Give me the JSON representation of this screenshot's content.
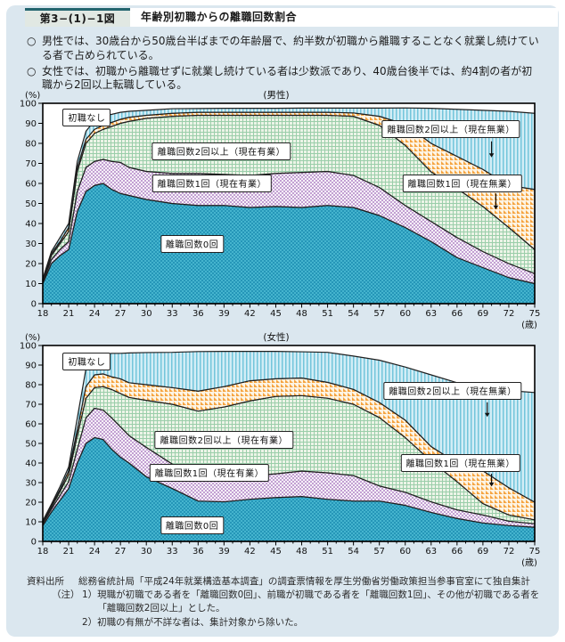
{
  "header": {
    "figure_no": "第3−(1)−1図",
    "title": "年齢別初職からの離職回数割合"
  },
  "bullets": [
    {
      "marker": "○",
      "text": "男性では、30歳台から50歳台半ばまでの年齢層で、約半数が初職から離職することなく就業し続けている者で占められている。"
    },
    {
      "marker": "○",
      "text": "女性では、初職から離職せずに就業し続けている者は少数派であり、40歳台後半では、約4割の者が初職から2回以上転職している。"
    }
  ],
  "colors": {
    "panel_bg": "#dbe7ef",
    "plot_bg": "#ffffff",
    "boundary_line": "#1f1f1f",
    "series": [
      {
        "name": "離職回数0回",
        "pattern": "checker",
        "base": "#45b4ce",
        "accent": "#2596b8"
      },
      {
        "name": "離職回数1回（現在有業）",
        "pattern": "checker",
        "base": "#f6f0f8",
        "accent": "#c2a0d2"
      },
      {
        "name": "離職回数2回以上（現在有業）",
        "pattern": "grid",
        "base": "#ecf4e7",
        "accent": "#9bceaa"
      },
      {
        "name": "離職回数1回（現在無業）",
        "pattern": "triangle",
        "base": "#fdf4e4",
        "accent": "#f5a440"
      },
      {
        "name": "離職回数2回以上（現在無業）",
        "pattern": "vstripe",
        "base": "#d2edf6",
        "accent": "#73c5db"
      }
    ]
  },
  "chart_data": [
    {
      "type": "area",
      "stacked": true,
      "title": "(男性)",
      "y_unit": "(%)",
      "x_unit": "(歳)",
      "xlim": [
        18,
        75
      ],
      "ylim": [
        0,
        100
      ],
      "xticks": [
        18,
        21,
        24,
        27,
        30,
        33,
        36,
        39,
        42,
        45,
        48,
        51,
        54,
        57,
        60,
        63,
        66,
        69,
        72,
        75
      ],
      "yticks": [
        0,
        10,
        20,
        30,
        40,
        50,
        60,
        70,
        80,
        90,
        100
      ],
      "x": [
        18,
        19,
        20,
        21,
        22,
        23,
        24,
        25,
        26,
        27,
        28,
        30,
        33,
        36,
        39,
        42,
        45,
        48,
        51,
        54,
        57,
        60,
        63,
        66,
        69,
        72,
        75
      ],
      "series": [
        {
          "name": "離職回数0回",
          "values": [
            10,
            20,
            24,
            27,
            46,
            56,
            59,
            60,
            57,
            55,
            54,
            52,
            50,
            49,
            49,
            48,
            48.5,
            48,
            49,
            48,
            44,
            38,
            31,
            23,
            18,
            13,
            10
          ]
        },
        {
          "name": "離職回数1回（現在有業）",
          "values": [
            1,
            2,
            3,
            4,
            10,
            12,
            12,
            12,
            14,
            15.5,
            14,
            14,
            15,
            16,
            15.5,
            16,
            16.5,
            17.5,
            17,
            16,
            14,
            11,
            10,
            10,
            8,
            7,
            5
          ]
        },
        {
          "name": "離職回数2回以上（現在有業）",
          "values": [
            0.5,
            2,
            3,
            5,
            10,
            12,
            14,
            15,
            17.5,
            19.5,
            23,
            26.5,
            28.5,
            29,
            29.5,
            30,
            29,
            28.5,
            28,
            29.5,
            31,
            30,
            24.8,
            24.5,
            22.5,
            18,
            12
          ]
        },
        {
          "name": "離職回数1回（現在無業）",
          "values": [
            0.5,
            1,
            1,
            2,
            2,
            2,
            2,
            2,
            2,
            2,
            2,
            1.5,
            1.5,
            1.5,
            1.5,
            1.5,
            1.5,
            1.5,
            1.5,
            1.7,
            4.5,
            10.5,
            14.2,
            16,
            18.5,
            21,
            30
          ]
        },
        {
          "name": "離職回数2回以上（現在無業）",
          "values": [
            0.5,
            1,
            2,
            2,
            3,
            4,
            4.5,
            5,
            4,
            3.5,
            3,
            2.5,
            2.3,
            1.9,
            2,
            2,
            2,
            2.1,
            2.1,
            2.4,
            4.1,
            8.2,
            17.5,
            23.5,
            29.5,
            37,
            38
          ]
        }
      ],
      "labels": [
        {
          "text": "初職なし"
        },
        {
          "text": "離職回数2回以上（現在有業）"
        },
        {
          "text": "離職回数1回（現在有業）"
        },
        {
          "text": "離職回数0回"
        },
        {
          "text": "離職回数2回以上（現在無業）"
        },
        {
          "text": "離職回数1回（現在無業）"
        }
      ]
    },
    {
      "type": "area",
      "stacked": true,
      "title": "(女性)",
      "y_unit": "(%)",
      "x_unit": "(歳)",
      "xlim": [
        18,
        75
      ],
      "ylim": [
        0,
        100
      ],
      "xticks": [
        18,
        21,
        24,
        27,
        30,
        33,
        36,
        39,
        42,
        45,
        48,
        51,
        54,
        57,
        60,
        63,
        66,
        69,
        72,
        75
      ],
      "yticks": [
        0,
        10,
        20,
        30,
        40,
        50,
        60,
        70,
        80,
        90,
        100
      ],
      "x": [
        18,
        19,
        20,
        21,
        22,
        23,
        24,
        25,
        26,
        27,
        28,
        30,
        33,
        36,
        39,
        42,
        45,
        48,
        51,
        54,
        57,
        60,
        63,
        66,
        69,
        72,
        75
      ],
      "series": [
        {
          "name": "離職回数0回",
          "values": [
            8,
            15,
            21,
            27,
            40,
            50,
            53,
            52,
            47,
            43,
            40,
            33,
            27,
            20.6,
            20.2,
            21.5,
            22.4,
            22.9,
            21.5,
            20.6,
            20.6,
            18.4,
            14.8,
            11.7,
            9.4,
            8.1,
            7.2
          ]
        },
        {
          "name": "離職回数1回（現在有業）",
          "values": [
            1,
            1.5,
            2.5,
            3.5,
            7,
            13,
            15,
            15,
            16,
            15.5,
            14,
            15,
            12.5,
            11.4,
            12.3,
            12,
            12.1,
            13,
            13.5,
            13,
            7.7,
            6.7,
            5.4,
            4.4,
            4.1,
            2.2,
            1.8
          ]
        },
        {
          "name": "離職回数2回以上（現在有業）",
          "values": [
            0.5,
            1,
            2,
            3.5,
            7,
            10,
            10.5,
            12,
            14.5,
            17,
            19.5,
            24,
            30.5,
            34.5,
            36.1,
            38.2,
            39.5,
            38.5,
            38.1,
            36.4,
            34.9,
            27.9,
            20.8,
            14.4,
            5.8,
            3.2,
            2
          ]
        },
        {
          "name": "離職回数1回（現在無業）",
          "values": [
            0.5,
            0.5,
            1,
            2,
            3,
            6,
            6.5,
            6.5,
            6.5,
            7.5,
            7.5,
            8,
            8.5,
            10.2,
            10.4,
            10.3,
            9,
            9,
            8.1,
            7.6,
            7.7,
            8.9,
            7.4,
            9.5,
            16.7,
            13.9,
            9
          ]
        },
        {
          "name": "離職回数2回以上（現在無業）",
          "values": [
            0.5,
            1,
            1.5,
            2,
            6,
            9,
            9,
            10,
            12,
            13,
            15.2,
            16.4,
            18,
            20.2,
            18,
            15,
            14,
            13.4,
            15.3,
            17,
            21.6,
            27.1,
            36.6,
            41,
            42.5,
            49.6,
            56
          ]
        }
      ],
      "labels": [
        {
          "text": "初職なし"
        },
        {
          "text": "離職回数2回以上（現在有業）"
        },
        {
          "text": "離職回数1回（現在有業）"
        },
        {
          "text": "離職回数0回"
        },
        {
          "text": "離職回数2回以上（現在無業）"
        },
        {
          "text": "離職回数1回（現在無業）"
        }
      ]
    }
  ],
  "footer": {
    "source_label": "資料出所",
    "source": "総務省統計局「平成24年就業構造基本調査」の調査票情報を厚生労働省労働政策担当参事官室にて独自集計",
    "note_label": "（注）",
    "notes": [
      "1）現職が初職である者を「離職回数0回」、前職が初職である者を「離職回数1回」、その他が初職である者を「離職回数2回以上」とした。",
      "2）初職の有無が不詳な者は、集計対象から除いた。"
    ]
  }
}
